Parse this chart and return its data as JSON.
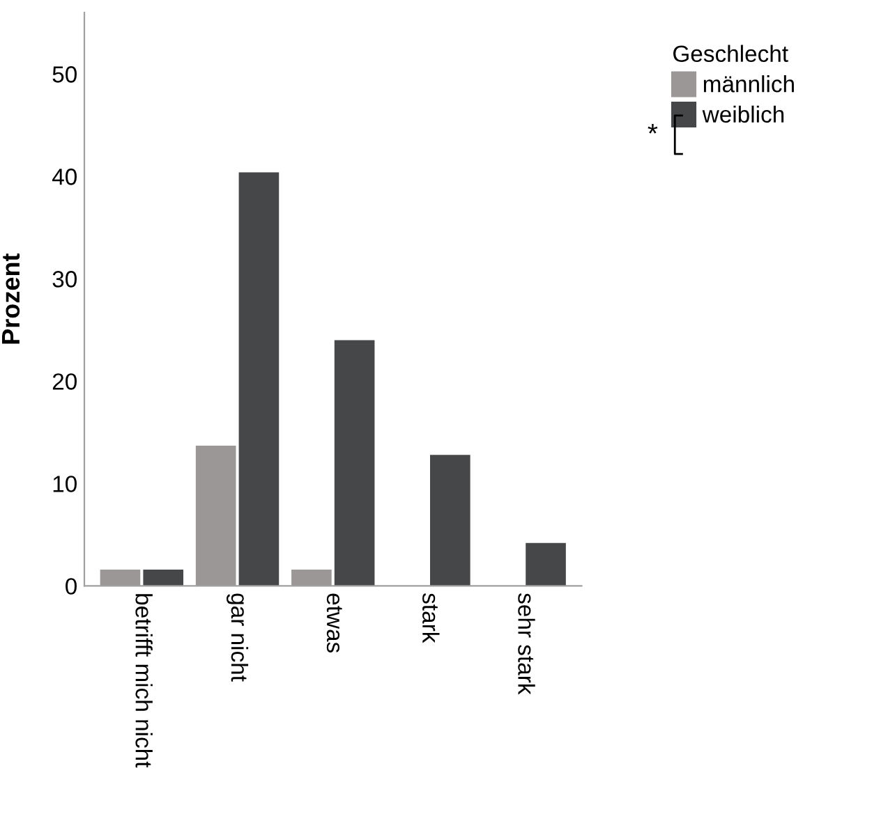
{
  "chart_data": {
    "type": "bar",
    "ylabel": "Prozent",
    "legend_title": "Geschlecht",
    "categories": [
      "betrifft mich nicht",
      "gar nicht",
      "etwas",
      "stark",
      "sehr stark"
    ],
    "series": [
      {
        "name": "männlich",
        "color": "#9a9796",
        "values": [
          1.6,
          13.7,
          1.6,
          0,
          0
        ]
      },
      {
        "name": "weiblich",
        "color": "#464749",
        "values": [
          1.6,
          40.4,
          24.0,
          12.8,
          4.2
        ]
      }
    ],
    "ylim": [
      0,
      56
    ],
    "yticks": [
      0,
      10,
      20,
      30,
      40,
      50
    ],
    "grid": false,
    "legend": "top right",
    "annotations": [
      "*"
    ]
  }
}
